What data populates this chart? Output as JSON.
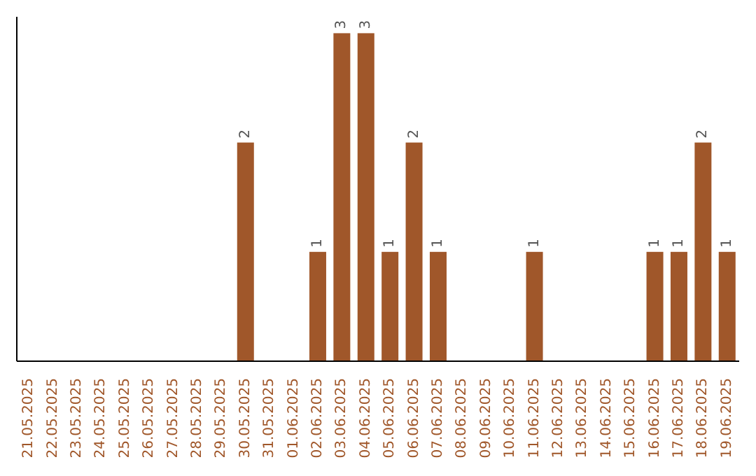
{
  "chart_data": {
    "type": "bar",
    "tick_labels": "x",
    "grid": false,
    "legend": false,
    "categories": [
      "21.05.2025",
      "22.05.2025",
      "23.05.2025",
      "24.05.2025",
      "25.05.2025",
      "26.05.2025",
      "27.05.2025",
      "28.05.2025",
      "29.05.2025",
      "30.05.2025",
      "31.05.2025",
      "01.06.2025",
      "02.06.2025",
      "03.06.2025",
      "04.06.2025",
      "05.06.2025",
      "06.06.2025",
      "07.06.2025",
      "08.06.2025",
      "09.06.2025",
      "10.06.2025",
      "11.06.2025",
      "12.06.2025",
      "13.06.2025",
      "14.06.2025",
      "15.06.2025",
      "16.06.2025",
      "17.06.2025",
      "18.06.2025",
      "19.06.2025"
    ],
    "values": [
      0,
      0,
      0,
      0,
      0,
      0,
      0,
      0,
      0,
      2,
      0,
      0,
      1,
      3,
      3,
      1,
      2,
      1,
      0,
      0,
      0,
      1,
      0,
      0,
      0,
      0,
      1,
      1,
      2,
      1
    ],
    "value_labels": [
      null,
      null,
      null,
      null,
      null,
      null,
      null,
      null,
      null,
      "2",
      null,
      null,
      "1",
      "3",
      "3",
      "1",
      "2",
      "1",
      null,
      null,
      null,
      "1",
      null,
      null,
      null,
      null,
      "1",
      "1",
      "2",
      "1"
    ],
    "color": "#a0572a"
  }
}
